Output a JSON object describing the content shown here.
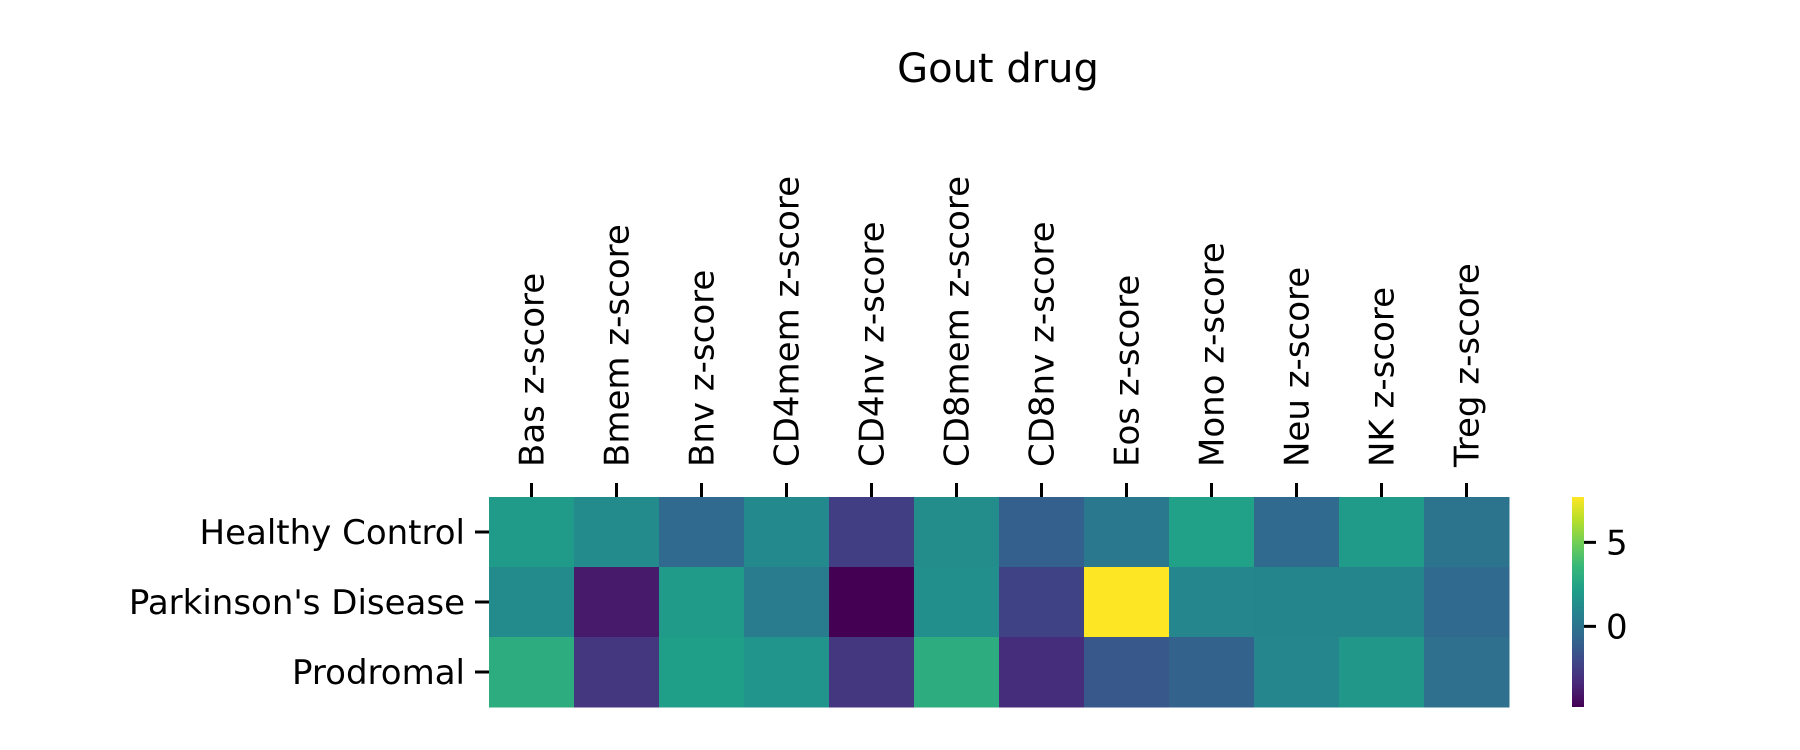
{
  "chart_data": {
    "type": "heatmap",
    "title": "Gout drug",
    "columns": [
      "Bas z-score",
      "Bmem z-score",
      "Bnv z-score",
      "CD4mem z-score",
      "CD4nv z-score",
      "CD8mem z-score",
      "CD8nv z-score",
      "Eos z-score",
      "Mono z-score",
      "Neu z-score",
      "NK z-score",
      "Treg z-score"
    ],
    "rows": [
      "Healthy Control",
      "Parkinson's Disease",
      "Prodromal"
    ],
    "values": [
      [
        2.0,
        1.2,
        -0.5,
        1.1,
        -2.5,
        1.3,
        -1.0,
        0.2,
        2.3,
        -0.5,
        2.0,
        0.0
      ],
      [
        1.2,
        -3.9,
        2.0,
        0.4,
        -4.8,
        1.4,
        -2.3,
        7.7,
        1.0,
        0.9,
        0.9,
        -0.5
      ],
      [
        3.0,
        -2.8,
        2.2,
        1.7,
        -2.8,
        3.0,
        -3.2,
        -1.4,
        -0.9,
        1.0,
        1.8,
        -0.2
      ]
    ],
    "vmin": -4.8,
    "vmax": 7.7,
    "colormap": "viridis",
    "colorbar_ticks": [
      5,
      0
    ],
    "colorbar_labels": [
      "5",
      "0"
    ],
    "xlabel": "",
    "ylabel": "",
    "xtick_position": "top",
    "grid": false
  }
}
